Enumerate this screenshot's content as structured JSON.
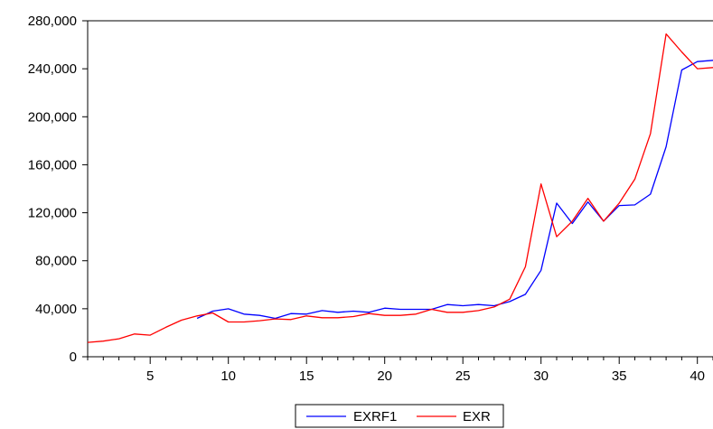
{
  "chart_data": {
    "type": "line",
    "title": "",
    "xlabel": "",
    "ylabel": "",
    "xlim": [
      1,
      41
    ],
    "ylim": [
      0,
      280000
    ],
    "x_ticks": [
      5,
      10,
      15,
      20,
      25,
      30,
      35,
      40
    ],
    "x_tick_labels": [
      "5",
      "10",
      "15",
      "20",
      "25",
      "30",
      "35",
      "40"
    ],
    "y_ticks": [
      0,
      40000,
      80000,
      120000,
      160000,
      200000,
      240000,
      280000
    ],
    "y_tick_labels": [
      "0",
      "40,000",
      "80,000",
      "120,000",
      "160,000",
      "200,000",
      "240,000",
      "280,000"
    ],
    "grid": false,
    "legend_position": "bottom-center",
    "series": [
      {
        "name": "EXRF1",
        "color": "#0000ff",
        "x": [
          8,
          9,
          10,
          11,
          12,
          13,
          14,
          15,
          16,
          17,
          18,
          19,
          20,
          21,
          22,
          23,
          24,
          25,
          26,
          27,
          28,
          29,
          30,
          31,
          32,
          33,
          34,
          35,
          36,
          37,
          38,
          39,
          40,
          41
        ],
        "values": [
          32000,
          38000,
          40000,
          35500,
          34500,
          32000,
          36000,
          35500,
          38500,
          37000,
          38000,
          37000,
          40500,
          39500,
          39500,
          39500,
          43500,
          42500,
          43500,
          42500,
          46000,
          52000,
          72000,
          128000,
          111000,
          129000,
          113000,
          126000,
          126500,
          135500,
          175000,
          239000,
          246000,
          247000
        ]
      },
      {
        "name": "EXR",
        "color": "#ff0000",
        "x": [
          1,
          2,
          3,
          4,
          5,
          6,
          7,
          8,
          9,
          10,
          11,
          12,
          13,
          14,
          15,
          16,
          17,
          18,
          19,
          20,
          21,
          22,
          23,
          24,
          25,
          26,
          27,
          28,
          29,
          30,
          31,
          32,
          33,
          34,
          35,
          36,
          37,
          38,
          39,
          40,
          41
        ],
        "values": [
          12000,
          13000,
          15000,
          19000,
          18000,
          24500,
          30500,
          34000,
          36500,
          29000,
          29000,
          30000,
          31500,
          31000,
          34000,
          32500,
          32500,
          33500,
          36000,
          34500,
          34500,
          35500,
          39500,
          37000,
          37000,
          38500,
          41500,
          48000,
          75000,
          144000,
          100000,
          113000,
          132000,
          113000,
          128000,
          148000,
          186000,
          269000,
          254000,
          240000,
          241000
        ]
      }
    ]
  }
}
